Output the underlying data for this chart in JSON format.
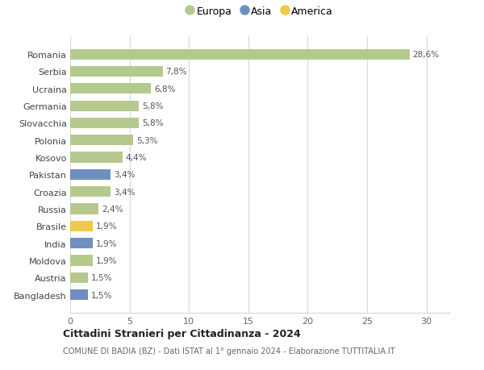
{
  "categories": [
    "Bangladesh",
    "Austria",
    "Moldova",
    "India",
    "Brasile",
    "Russia",
    "Croazia",
    "Pakistan",
    "Kosovo",
    "Polonia",
    "Slovacchia",
    "Germania",
    "Ucraina",
    "Serbia",
    "Romania"
  ],
  "values": [
    1.5,
    1.5,
    1.9,
    1.9,
    1.9,
    2.4,
    3.4,
    3.4,
    4.4,
    5.3,
    5.8,
    5.8,
    6.8,
    7.8,
    28.6
  ],
  "labels": [
    "1,5%",
    "1,5%",
    "1,9%",
    "1,9%",
    "1,9%",
    "2,4%",
    "3,4%",
    "3,4%",
    "4,4%",
    "5,3%",
    "5,8%",
    "5,8%",
    "6,8%",
    "7,8%",
    "28,6%"
  ],
  "colors": [
    "#6e8fc0",
    "#b5c98e",
    "#b5c98e",
    "#6e8fc0",
    "#f0c84a",
    "#b5c98e",
    "#b5c98e",
    "#6e8fc0",
    "#b5c98e",
    "#b5c98e",
    "#b5c98e",
    "#b5c98e",
    "#b5c98e",
    "#b5c98e",
    "#b5c98e"
  ],
  "europa_color": "#b5c98e",
  "asia_color": "#6e8fc0",
  "america_color": "#f0c84a",
  "title": "Cittadini Stranieri per Cittadinanza - 2024",
  "subtitle": "COMUNE DI BADIA (BZ) - Dati ISTAT al 1° gennaio 2024 - Elaborazione TUTTITALIA.IT",
  "xlim": [
    0,
    32
  ],
  "xticks": [
    0,
    5,
    10,
    15,
    20,
    25,
    30
  ],
  "background_color": "#ffffff",
  "grid_color": "#d8d8d8",
  "bar_height": 0.62,
  "legend_labels": [
    "Europa",
    "Asia",
    "America"
  ]
}
